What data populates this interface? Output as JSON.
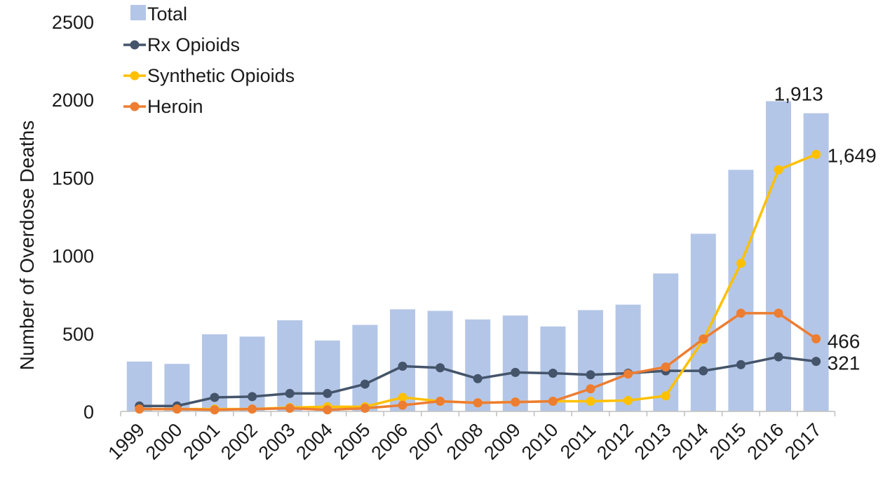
{
  "chart_data": {
    "type": "bar",
    "title": "",
    "xlabel": "",
    "ylabel": "Number of Overdose Deaths",
    "ylim": [
      0,
      2500
    ],
    "yticks": [
      0,
      500,
      1000,
      1500,
      2000,
      2500
    ],
    "grid": false,
    "legend_position": "top-left",
    "categories": [
      "1999",
      "2000",
      "2001",
      "2002",
      "2003",
      "2004",
      "2005",
      "2006",
      "2007",
      "2008",
      "2009",
      "2010",
      "2011",
      "2012",
      "2013",
      "2014",
      "2015",
      "2016",
      "2017"
    ],
    "bars": {
      "name": "Total",
      "color": "#b4c6e7",
      "values": [
        320,
        305,
        495,
        480,
        585,
        455,
        555,
        655,
        645,
        590,
        615,
        545,
        650,
        685,
        885,
        1140,
        1550,
        1990,
        1913
      ]
    },
    "lines": [
      {
        "name": "Rx Opioids",
        "color": "#44546a",
        "values": [
          35,
          35,
          90,
          95,
          115,
          115,
          175,
          290,
          280,
          210,
          250,
          245,
          235,
          245,
          260,
          260,
          300,
          350,
          321
        ]
      },
      {
        "name": "Synthetic Opioids",
        "color": "#ffc000",
        "values": [
          15,
          15,
          15,
          15,
          25,
          30,
          30,
          90,
          65,
          55,
          60,
          65,
          65,
          70,
          100,
          460,
          950,
          1550,
          1649
        ]
      },
      {
        "name": "Heroin",
        "color": "#ed7d31",
        "values": [
          15,
          15,
          10,
          15,
          20,
          10,
          20,
          40,
          65,
          55,
          60,
          65,
          145,
          240,
          285,
          465,
          630,
          630,
          466
        ]
      }
    ],
    "data_labels": [
      {
        "series": "Total",
        "category": "2017",
        "text": "1,913"
      },
      {
        "series": "Synthetic Opioids",
        "category": "2017",
        "text": "1,649"
      },
      {
        "series": "Heroin",
        "category": "2017",
        "text": "466"
      },
      {
        "series": "Rx Opioids",
        "category": "2017",
        "text": "321"
      }
    ]
  }
}
